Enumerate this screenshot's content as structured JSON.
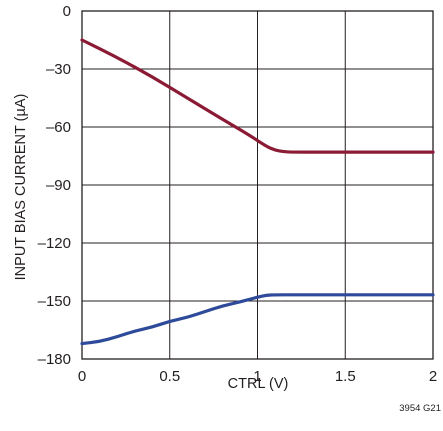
{
  "chart_data": {
    "type": "line",
    "title": "",
    "xlabel": "CTRL (V)",
    "ylabel": "INPUT BIAS CURRENT (µA)",
    "xlim": [
      0,
      2
    ],
    "ylim": [
      -180,
      0
    ],
    "x_ticks": [
      0,
      0.5,
      1,
      1.5,
      2
    ],
    "x_tick_labels": [
      "0",
      "0.5",
      "1",
      "1.5",
      "2"
    ],
    "y_ticks": [
      0,
      -30,
      -60,
      -90,
      -120,
      -150,
      -180
    ],
    "y_tick_labels": [
      "0",
      "–30",
      "–60",
      "–90",
      "–120",
      "–150",
      "–180"
    ],
    "grid": true,
    "legend": "none",
    "series": [
      {
        "color": "#8b1a35",
        "x": [
          0,
          0.2,
          0.4,
          0.6,
          0.8,
          0.95,
          1.05,
          1.1,
          1.15,
          1.2,
          1.4,
          1.6,
          1.8,
          2.0
        ],
        "y": [
          -15,
          -24,
          -34,
          -45,
          -56,
          -64,
          -70,
          -72,
          -72.8,
          -73,
          -73,
          -73,
          -73,
          -73
        ]
      },
      {
        "color": "#2e4a9a",
        "x": [
          0,
          0.1,
          0.2,
          0.3,
          0.4,
          0.5,
          0.6,
          0.7,
          0.8,
          0.9,
          1.0,
          1.05,
          1.1,
          1.2,
          1.4,
          1.6,
          1.8,
          2.0
        ],
        "y": [
          -172,
          -171,
          -168.5,
          -165.5,
          -163.5,
          -160.5,
          -158.5,
          -155.5,
          -152.5,
          -150.5,
          -148,
          -147,
          -146.8,
          -146.8,
          -146.8,
          -146.8,
          -146.8,
          -146.8
        ]
      }
    ]
  },
  "figure_id": "3954 G21"
}
